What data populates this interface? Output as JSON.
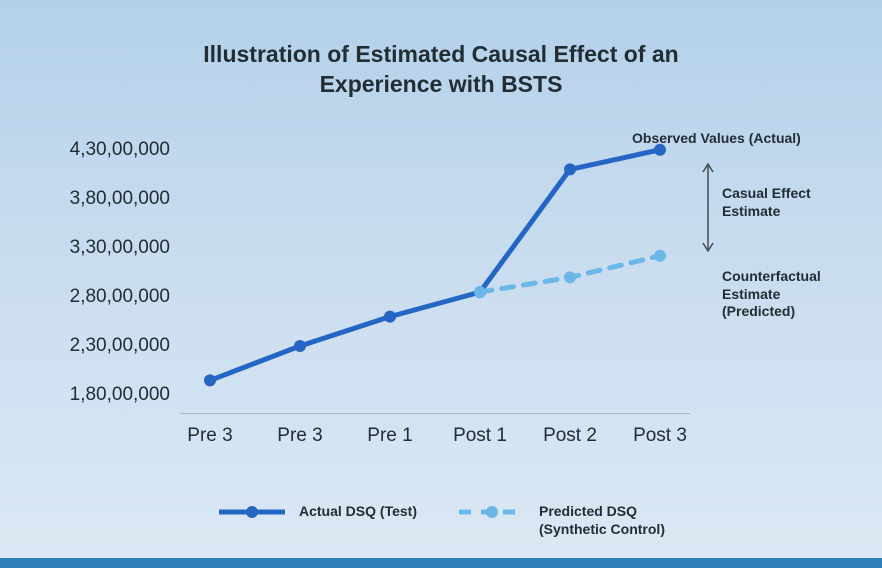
{
  "title_line1": "Illustration of Estimated Causal Effect of an",
  "title_line2": "Experience with BSTS",
  "chart": {
    "type": "line",
    "background_gradient_top": "#b3d1ea",
    "background_gradient_bottom": "#dce9f5",
    "axis_text_color": "#222d34",
    "axis_fontsize": 19,
    "title_fontsize": 23,
    "y_ticks": [
      {
        "label": "4,30,00,000",
        "value": 430
      },
      {
        "label": "3,80,00,000",
        "value": 380
      },
      {
        "label": "3,30,00,000",
        "value": 330
      },
      {
        "label": "2,80,00,000",
        "value": 280
      },
      {
        "label": "2,30,00,000",
        "value": 230
      },
      {
        "label": "1,80,00,000",
        "value": 180
      }
    ],
    "y_min": 175,
    "y_max": 440,
    "x_categories": [
      "Pre 3",
      "Pre 3",
      "Pre 1",
      "Post 1",
      "Post 2",
      "Post 3"
    ],
    "series": [
      {
        "name": "actual",
        "label": "Actual DSQ (Test)",
        "color": "#2566c4",
        "line_width": 5,
        "dash": "none",
        "marker": "circle",
        "marker_size": 6,
        "values": [
          195,
          230,
          260,
          285,
          410,
          430
        ]
      },
      {
        "name": "predicted",
        "label": "Predicted DSQ (Synthetic Control)",
        "label_line1": "Predicted DSQ",
        "label_line2": "(Synthetic Control)",
        "color": "#6bb7e8",
        "line_width": 5,
        "dash": "12 10",
        "marker": "circle",
        "marker_size": 6,
        "values": [
          null,
          null,
          null,
          285,
          300,
          322
        ]
      }
    ],
    "annotations": {
      "observed": "Observed Values (Actual)",
      "causal_line1": "Casual Effect",
      "causal_line2": "Estimate",
      "counter_line1": "Counterfactual",
      "counter_line2": "Estimate",
      "counter_line3": "(Predicted)"
    },
    "annotation_fontsize": 14,
    "annotation_color": "#222d34",
    "arrow_color": "#444b51"
  },
  "legend": {
    "swatch_width": 60,
    "swatch_height": 18
  }
}
